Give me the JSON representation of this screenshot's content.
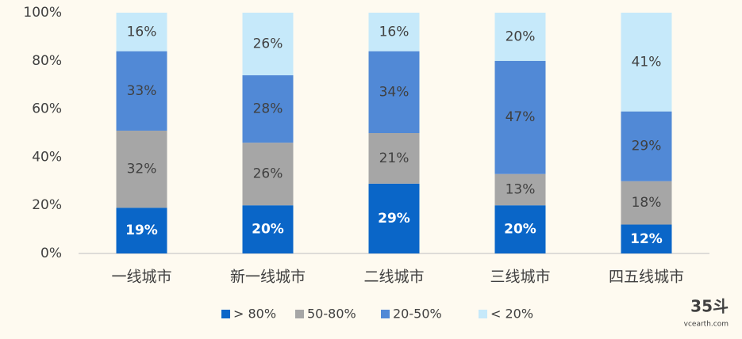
{
  "chart_data": {
    "type": "stacked-bar",
    "categories": [
      "一线城市",
      "新一线城市",
      "二线城市",
      "三线城市",
      "四五线城市"
    ],
    "series": [
      {
        "name": "> 80%",
        "color": "#0a66c8",
        "values": [
          19,
          20,
          29,
          20,
          12
        ],
        "value_labels": [
          "19%",
          "20%",
          "29%",
          "20%",
          "12%"
        ]
      },
      {
        "name": "50-80%",
        "color": "#a6a6a6",
        "values": [
          32,
          26,
          21,
          13,
          18
        ],
        "value_labels": [
          "32%",
          "26%",
          "21%",
          "13%",
          "18%"
        ]
      },
      {
        "name": "20-50%",
        "color": "#5189d6",
        "values": [
          33,
          28,
          34,
          47,
          29
        ],
        "value_labels": [
          "33%",
          "28%",
          "34%",
          "47%",
          "29%"
        ]
      },
      {
        "name": "< 20%",
        "color": "#c6e9fa",
        "values": [
          16,
          26,
          16,
          20,
          41
        ],
        "value_labels": [
          "16%",
          "26%",
          "16%",
          "20%",
          "41%"
        ]
      }
    ],
    "ylim": [
      0,
      100
    ],
    "yticks": [
      {
        "value": 0,
        "label": "0%"
      },
      {
        "value": 20,
        "label": "20%"
      },
      {
        "value": 40,
        "label": "40%"
      },
      {
        "value": 60,
        "label": "60%"
      },
      {
        "value": 80,
        "label": "80%"
      },
      {
        "value": 100,
        "label": "100%"
      }
    ],
    "legend": "bottom"
  },
  "watermark": {
    "brand": "35斗",
    "site": "vcearth.com"
  }
}
